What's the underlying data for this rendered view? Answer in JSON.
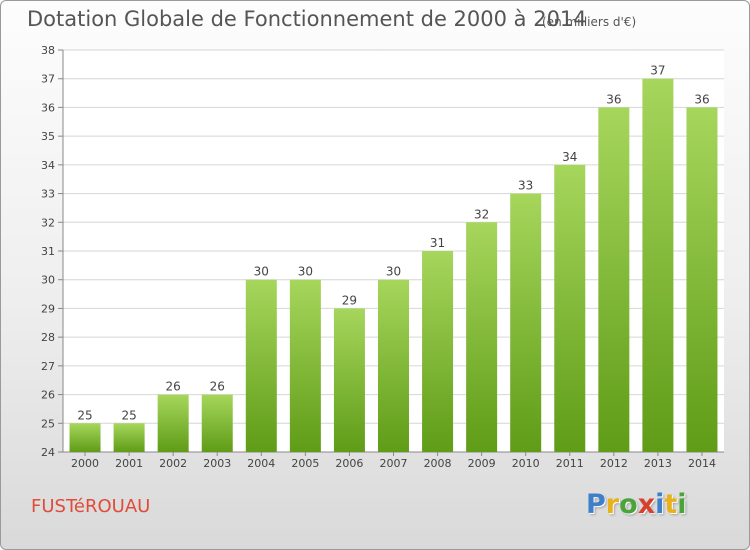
{
  "header": {
    "title": "Dotation Globale de Fonctionnement de 2000 à 2014",
    "unit": "(en milliers d'€)"
  },
  "footer": {
    "commune": "FUSTéROUAU",
    "logo_letters": [
      "P",
      "r",
      "o",
      "x",
      "i",
      "t",
      "i"
    ],
    "logo_colors": [
      "#3d7fc9",
      "#e8b21c",
      "#4aa43a",
      "#d8402e",
      "#3d7fc9",
      "#e8b21c",
      "#4aa43a"
    ]
  },
  "colors": {
    "bar_light": "#a6d65c",
    "bar_dark": "#5f9c17",
    "grid": "#d6d6d6",
    "text": "#444444",
    "commune": "#e04b3a"
  },
  "chart_data": {
    "type": "bar",
    "title": "Dotation Globale de Fonctionnement de 2000 à 2014",
    "subtitle": "(en milliers d'€)",
    "categories": [
      "2000",
      "2001",
      "2002",
      "2003",
      "2004",
      "2005",
      "2006",
      "2007",
      "2008",
      "2009",
      "2010",
      "2011",
      "2012",
      "2013",
      "2014"
    ],
    "values": [
      25,
      25,
      26,
      26,
      30,
      30,
      29,
      30,
      31,
      32,
      33,
      34,
      36,
      37,
      36
    ],
    "ylim": [
      24,
      38
    ],
    "yticks": [
      24,
      25,
      26,
      27,
      28,
      29,
      30,
      31,
      32,
      33,
      34,
      35,
      36,
      37,
      38
    ],
    "grid": true,
    "legend": "none"
  }
}
